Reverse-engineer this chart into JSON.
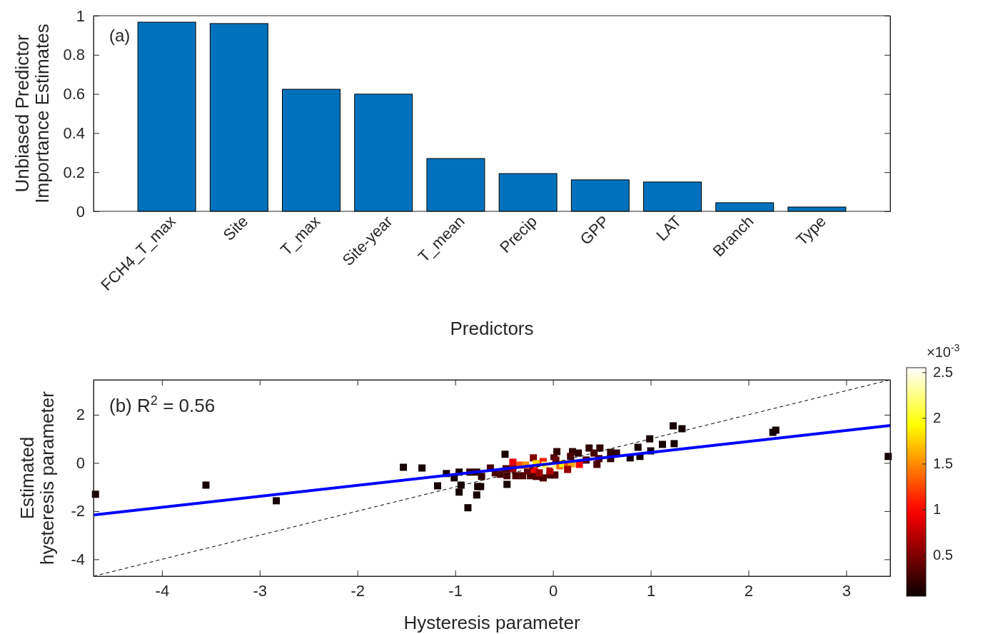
{
  "chart_data": [
    {
      "type": "bar",
      "categories": [
        "FCH4_T_max",
        "Site",
        "T_max",
        "Site-year",
        "T_mean",
        "Precip",
        "GPP",
        "LAT",
        "Branch",
        "Type"
      ],
      "values": [
        0.967,
        0.96,
        0.624,
        0.599,
        0.27,
        0.193,
        0.161,
        0.15,
        0.044,
        0.022
      ],
      "color": "#0072bd",
      "ylim": [
        0,
        1
      ],
      "yticks": [
        0,
        0.2,
        0.4,
        0.6,
        0.8,
        1
      ],
      "xlabel": "Predictors",
      "ylabel": "Unbiased Predictor\nImportance Estimates",
      "annotations": [
        "(a)"
      ]
    },
    {
      "type": "scatter",
      "xlim": [
        -4.7,
        3.45
      ],
      "ylim": [
        -4.7,
        3.45
      ],
      "xticks": [
        -4,
        -3,
        -2,
        -1,
        0,
        1,
        2,
        3
      ],
      "yticks": [
        -4,
        -2,
        0,
        2
      ],
      "xlabel": "Hysteresis parameter",
      "ylabel": "Estimated\nhysteresis parameter",
      "clabel": "×10$^{-3}$",
      "clim": [
        0.05,
        2.55
      ],
      "cticks": [
        0.5,
        1,
        1.5,
        2,
        2.5
      ],
      "annotations": [
        "(b) R$^{2}$ = 0.56"
      ],
      "series": [
        {
          "type": "scatter",
          "marker": "square",
          "x": [
            -4.68,
            -3.55,
            -2.83,
            -1.53,
            -1.34,
            -1.18,
            -1.09,
            -1.01,
            -0.96,
            -0.96,
            -0.94,
            -0.77,
            -0.74,
            -0.78,
            -0.87,
            -0.49,
            -0.47,
            3.43,
            2.25,
            2.28,
            1.23,
            1.32,
            1.24,
            1.12,
            0.99,
            1.0,
            0.87,
            0.89,
            0.79,
            0.37,
            0.48,
            0.04,
            0.2,
            0.26,
            0.42,
            0.59,
            0.65,
            0.47,
            0.59,
            0.34,
            0.45,
            0.18,
            0.01,
            -0.85,
            -0.78,
            -0.73,
            -0.64,
            -0.59,
            -0.54,
            -0.47,
            -0.48,
            -0.38,
            -0.31,
            -0.23,
            -0.17,
            -0.1,
            -0.03,
            0.02,
            -0.26,
            -0.41,
            -0.41,
            -0.34,
            -0.28,
            -0.2,
            -0.19,
            -0.17,
            -0.1,
            -0.08,
            -0.03,
            -0.01,
            0.03,
            0.07,
            0.1,
            0.15,
            0.19,
            0.27,
            0.15,
            0.03,
            -0.14
          ],
          "values": [
            -1.3,
            -0.92,
            -1.57,
            -0.18,
            -0.21,
            -0.95,
            -0.44,
            -0.62,
            -0.38,
            -1.21,
            -0.92,
            -0.98,
            -0.98,
            -1.33,
            -1.86,
            0.36,
            -0.89,
            0.27,
            1.27,
            1.36,
            1.54,
            1.42,
            0.8,
            0.77,
            1.0,
            0.5,
            0.65,
            0.27,
            0.21,
            0.62,
            0.62,
            0.47,
            0.47,
            0.41,
            0.41,
            0.44,
            0.41,
            0.18,
            0.18,
            0.12,
            -0.06,
            0.27,
            0.21,
            -0.38,
            -0.38,
            -0.56,
            -0.21,
            -0.41,
            -0.47,
            -0.53,
            -0.24,
            -0.53,
            -0.53,
            -0.53,
            -0.56,
            -0.62,
            -0.5,
            -0.5,
            -0.33,
            0.03,
            -0.24,
            -0.09,
            -0.09,
            0.21,
            -0.27,
            -0.03,
            0.06,
            -0.09,
            -0.33,
            -0.03,
            -0.09,
            -0.12,
            -0.03,
            -0.09,
            -0.03,
            -0.06,
            -0.27,
            0.12,
            -0.41
          ],
          "colors": [
            "#170000",
            "#170000",
            "#170000",
            "#170000",
            "#170000",
            "#170000",
            "#170000",
            "#170000",
            "#170000",
            "#170000",
            "#170000",
            "#170000",
            "#170000",
            "#170000",
            "#170000",
            "#170000",
            "#170000",
            "#170000",
            "#170000",
            "#170000",
            "#170000",
            "#170000",
            "#170000",
            "#170000",
            "#170000",
            "#170000",
            "#170000",
            "#170000",
            "#170000",
            "#310000",
            "#310000",
            "#310000",
            "#310000",
            "#310000",
            "#4b0000",
            "#310000",
            "#310000",
            "#4b0000",
            "#310000",
            "#4b0000",
            "#4b0000",
            "#4b0000",
            "#4b0000",
            "#310000",
            "#310000",
            "#310000",
            "#4b0000",
            "#4b0000",
            "#4b0000",
            "#4b0000",
            "#4b0000",
            "#4b0000",
            "#4b0000",
            "#4b0000",
            "#4b0000",
            "#4b0000",
            "#4b0000",
            "#4b0000",
            "#650000",
            "#e80000",
            "#9a0000",
            "#ff5500",
            "#ff8b00",
            "#800000",
            "#ff0300",
            "#ffdd00",
            "#ff1f00",
            "#ffff70",
            "#b40000",
            "#ffffeb",
            "#ffff99",
            "#ff7000",
            "#fff800",
            "#ff5500",
            "#ffa700",
            "#ff0300",
            "#9a0000",
            "#650000",
            "#9a0000"
          ]
        },
        {
          "type": "line",
          "color": "#0000ff",
          "x": [
            -4.7,
            3.45
          ],
          "values": [
            -2.16,
            1.55
          ]
        },
        {
          "type": "line",
          "color": "#000000",
          "line_style": "dashed",
          "x": [
            -4.7,
            3.45
          ],
          "values": [
            -4.7,
            3.45
          ]
        }
      ]
    }
  ]
}
